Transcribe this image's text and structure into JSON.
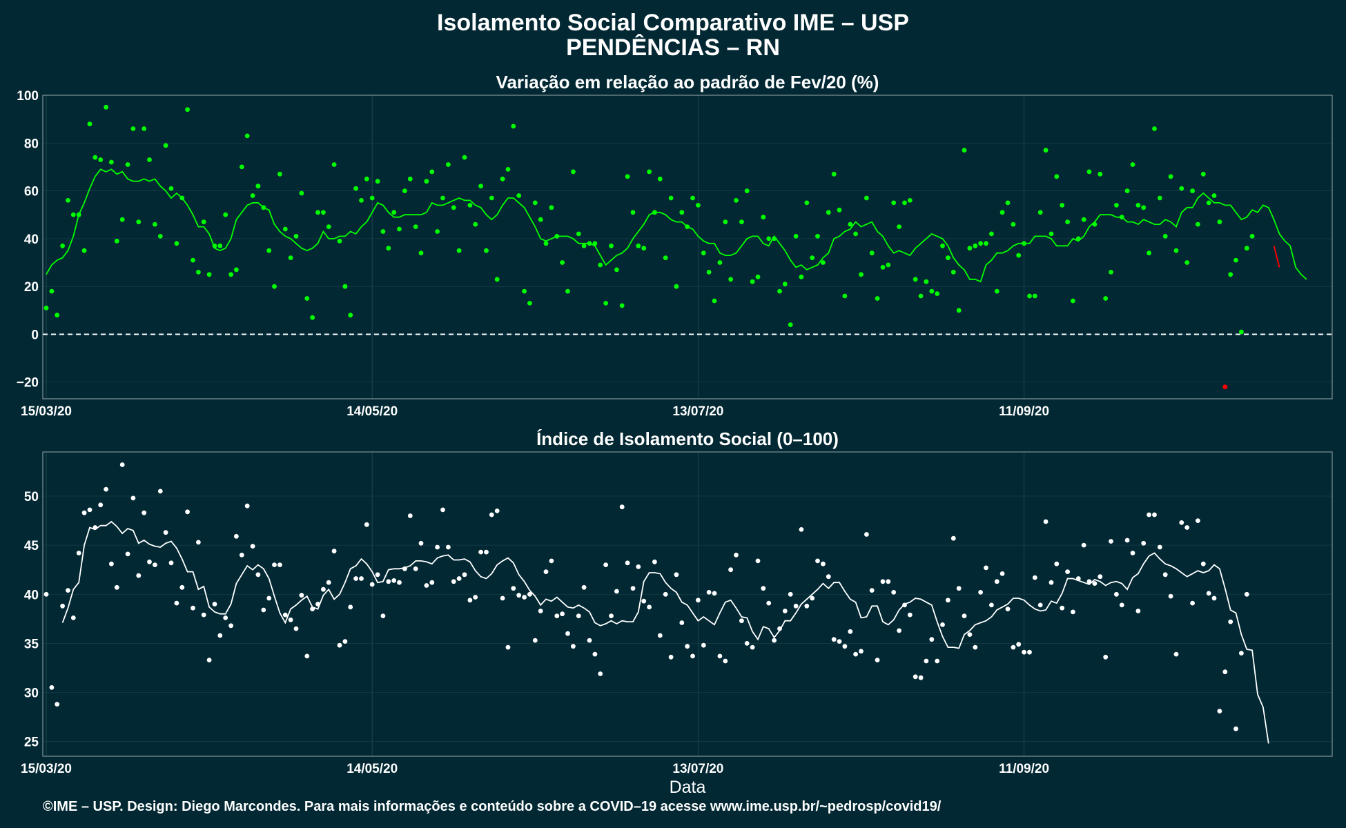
{
  "header": {
    "title": "Isolamento Social Comparativo IME – USP",
    "subtitle": "PENDÊNCIAS – RN"
  },
  "footer": {
    "text": "©IME – USP. Design: Diego Marcondes. Para mais informações e conteúdo sobre a COVID–19 acesse www.ime.usp.br/~pedrosp/covid19/"
  },
  "colors": {
    "background": "#022833",
    "top_series": "#00ff00",
    "top_highlight": "#ff0000",
    "bottom_series": "#ffffff"
  },
  "chart_data": [
    {
      "type": "scatter",
      "title": "Variação em relação ao padrão de Fev/20 (%)",
      "xlabel": "",
      "ylabel": "",
      "x_start": "15/03/20",
      "x_ticks": [
        {
          "day": 0,
          "label": "15/03/20"
        },
        {
          "day": 60,
          "label": "14/05/20"
        },
        {
          "day": 120,
          "label": "13/07/20"
        },
        {
          "day": 180,
          "label": "11/09/20"
        }
      ],
      "y_ticks": [
        -20,
        0,
        20,
        40,
        60,
        80,
        100
      ],
      "ylim": [
        -27,
        100
      ],
      "reference_line": 0,
      "grid": true,
      "series": [
        {
          "kind": "points",
          "values": [
            11,
            18,
            8,
            37,
            56,
            50,
            50,
            35,
            88,
            74,
            73,
            95,
            72,
            39,
            48,
            71,
            86,
            47,
            86,
            73,
            46,
            41,
            79,
            61,
            38,
            57,
            94,
            31,
            26,
            47,
            25,
            37,
            37,
            50,
            25,
            27,
            70,
            83,
            58,
            62,
            53,
            35,
            20,
            67,
            44,
            32,
            41,
            59,
            15,
            7,
            51,
            51,
            45,
            71,
            39,
            20,
            8,
            61,
            56,
            65,
            57,
            64,
            43,
            36,
            51,
            44,
            60,
            65,
            45,
            34,
            64,
            68,
            43,
            57,
            71,
            53,
            35,
            74,
            54,
            46,
            62,
            35,
            57,
            23,
            65,
            69,
            87,
            58,
            18,
            13,
            55,
            48,
            38,
            53,
            41,
            30,
            18,
            68,
            42,
            37,
            38,
            38,
            29,
            13,
            37,
            27,
            12,
            66,
            51,
            37,
            36,
            68,
            51,
            65,
            32,
            57,
            20,
            51,
            45,
            57,
            54,
            34,
            26,
            14,
            30,
            47,
            23,
            56,
            47,
            60,
            22,
            24,
            49,
            40,
            40,
            18,
            21,
            4,
            41,
            24,
            55,
            32,
            41,
            30,
            51,
            67,
            52,
            16,
            46,
            42,
            25,
            57,
            34,
            15,
            28,
            29,
            55,
            45,
            55,
            56,
            23,
            16,
            22,
            18,
            17,
            37,
            32,
            26,
            10,
            77,
            36,
            37,
            38,
            38,
            42,
            18,
            51,
            55,
            46,
            33,
            38,
            16,
            16,
            51,
            77,
            42,
            66,
            54,
            47,
            14,
            40,
            48,
            68,
            46,
            67,
            15,
            26,
            54,
            49,
            60,
            71,
            54,
            53,
            34,
            86,
            57,
            41,
            66,
            35,
            61,
            30,
            60,
            46,
            67,
            55,
            58,
            47,
            -22,
            25,
            31,
            1,
            36,
            41
          ]
        },
        {
          "kind": "line",
          "values": [
            25,
            29,
            31,
            32,
            35,
            41,
            50,
            55,
            61,
            66,
            69,
            68,
            69,
            67,
            68,
            65,
            64,
            64,
            65,
            64,
            65,
            62,
            60,
            57,
            59,
            57,
            54,
            50,
            45,
            45,
            42,
            36,
            35,
            36,
            40,
            48,
            51,
            54,
            55,
            55,
            53,
            52,
            46,
            43,
            41,
            40,
            38,
            36,
            35,
            36,
            38,
            43,
            40,
            40,
            41,
            41,
            43,
            42,
            45,
            47,
            51,
            55,
            54,
            51,
            49,
            49,
            50,
            50,
            50,
            50,
            51,
            55,
            54,
            54,
            55,
            56,
            57,
            56,
            56,
            54,
            53,
            50,
            48,
            50,
            54,
            57,
            57,
            55,
            53,
            49,
            45,
            40,
            39,
            40,
            41,
            41,
            41,
            40,
            38,
            38,
            38,
            37,
            33,
            29,
            31,
            33,
            34,
            36,
            40,
            43,
            46,
            50,
            51,
            51,
            50,
            48,
            47,
            47,
            45,
            44,
            41,
            39,
            38,
            38,
            34,
            33,
            33,
            34,
            37,
            40,
            41,
            41,
            38,
            37,
            41,
            38,
            35,
            31,
            28,
            29,
            27,
            28,
            29,
            32,
            34,
            40,
            41,
            43,
            44,
            47,
            45,
            46,
            47,
            43,
            41,
            37,
            34,
            35,
            34,
            33,
            36,
            38,
            40,
            42,
            41,
            40,
            37,
            32,
            29,
            27,
            23,
            23,
            22,
            29,
            31,
            34,
            34,
            35,
            37,
            38,
            38,
            38,
            41,
            41,
            41,
            40,
            37,
            37,
            37,
            40,
            39,
            41,
            45,
            47,
            50,
            50,
            50,
            49,
            49,
            47,
            47,
            46,
            48,
            47,
            46,
            46,
            48,
            47,
            45,
            51,
            53,
            53,
            57,
            59,
            57,
            55,
            55,
            54,
            54,
            51,
            48,
            49,
            52,
            51,
            54,
            53,
            48,
            42,
            39,
            37,
            28,
            25,
            23
          ]
        },
        {
          "kind": "highlight",
          "from_day": 226,
          "values": [
            37,
            28
          ]
        }
      ]
    },
    {
      "type": "scatter",
      "title": "Índice de Isolamento Social (0–100)",
      "xlabel": "Data",
      "ylabel": "",
      "x_start": "15/03/20",
      "x_ticks": [
        {
          "day": 0,
          "label": "15/03/20"
        },
        {
          "day": 60,
          "label": "14/05/20"
        },
        {
          "day": 120,
          "label": "13/07/20"
        },
        {
          "day": 180,
          "label": "11/09/20"
        }
      ],
      "y_ticks": [
        25,
        30,
        35,
        40,
        45,
        50
      ],
      "ylim": [
        23.5,
        54.5
      ],
      "grid": true,
      "series": [
        {
          "kind": "points",
          "values": [
            40,
            30.5,
            28.8,
            38.8,
            40.4,
            37.6,
            44.2,
            48.3,
            48.6,
            46.8,
            49.1,
            50.7,
            43.1,
            40.7,
            53.2,
            44.1,
            49.8,
            41.9,
            48.3,
            43.3,
            43,
            50.5,
            46.3,
            43.2,
            39.1,
            40.7,
            48.4,
            38.6,
            45.3,
            37.9,
            33.3,
            39,
            35.8,
            37.6,
            36.8,
            45.9,
            44,
            49,
            44.9,
            42,
            38.4,
            39.6,
            43,
            43,
            37.9,
            37.4,
            36.5,
            39.9,
            33.7,
            38.5,
            39,
            40.5,
            41.2,
            44.4,
            34.8,
            35.2,
            38.7,
            41.6,
            41.6,
            47.1,
            41,
            42,
            37.8,
            41.3,
            41.4,
            41.2,
            42.6,
            48,
            42.6,
            45.2,
            40.9,
            41.2,
            44.8,
            48.6,
            44.8,
            41.3,
            41.6,
            42,
            39.4,
            39.7,
            44.3,
            44.3,
            48.1,
            48.5,
            39.6,
            34.6,
            40.6,
            39.9,
            39.7,
            40,
            35.3,
            38.3,
            42.3,
            43.4,
            37.8,
            38,
            36,
            34.7,
            37.8,
            40.7,
            35.3,
            33.9,
            31.9,
            43,
            37.8,
            40.3,
            48.9,
            43.2,
            40.6,
            42.8,
            39.3,
            38.7,
            43.3,
            35.8,
            40,
            33.6,
            42,
            37.1,
            34.7,
            33.7,
            39.4,
            34.8,
            40.2,
            40.1,
            33.7,
            33.2,
            42.5,
            44,
            37.3,
            35,
            34.6,
            43.4,
            40.6,
            39.1,
            35.3,
            36.5,
            38.3,
            40,
            38.8,
            46.6,
            38.8,
            39.6,
            43.4,
            43.1,
            41.8,
            35.4,
            35.2,
            34.7,
            36.2,
            33.9,
            34.2,
            46.1,
            40.4,
            33.3,
            41.3,
            41.3,
            40.2,
            36.3,
            38.9,
            37.9,
            31.6,
            31.5,
            33.2,
            35.4,
            33.2,
            36.9,
            39.4,
            45.7,
            40.6,
            37.8,
            35.9,
            34.6,
            40.2,
            42.7,
            38.9,
            41.3,
            42.1,
            38.5,
            34.6,
            34.9,
            34.1,
            34.1,
            41.7,
            38.9,
            47.4,
            41.2,
            43.1,
            38.6,
            42.3,
            38.2,
            41.6,
            45,
            41.3,
            41.1,
            41.8,
            33.6,
            45.4,
            40,
            38.9,
            45.5,
            44.2,
            38.3,
            45.2,
            48.1,
            48.1,
            44.8,
            42,
            39.8,
            33.9,
            47.3,
            46.8,
            39.1,
            47.5,
            43.1,
            40.1,
            39.6,
            28.1,
            32.1,
            37.2,
            26.3,
            34,
            40
          ]
        },
        {
          "kind": "line",
          "from_day": 3,
          "values": [
            37.1,
            38.6,
            40.5,
            41.2,
            45,
            46.8,
            46.6,
            47,
            47,
            47.4,
            46.9,
            46.2,
            46.7,
            46.5,
            45.2,
            45.5,
            45.1,
            44.9,
            44.8,
            45.2,
            45.4,
            44.7,
            43.6,
            42.3,
            42.3,
            40.5,
            40.8,
            38.7,
            38.2,
            38,
            38,
            39,
            41.1,
            42,
            42.9,
            42.5,
            43,
            42.6,
            41.6,
            39.8,
            38.1,
            37.1,
            38.5,
            38.9,
            39.4,
            39.8,
            38.7,
            38.5,
            39.9,
            40.5,
            39.5,
            40,
            41.2,
            42.6,
            42.9,
            43.6,
            43.1,
            42.3,
            41.2,
            41.3,
            42.5,
            42.6,
            42.6,
            42.7,
            42.9,
            43.4,
            43.4,
            43.3,
            43.1,
            43.7,
            43.9,
            44,
            43.5,
            43.5,
            43.6,
            43.3,
            42.4,
            41.8,
            41.6,
            42.1,
            43,
            43.4,
            43.7,
            43.2,
            42,
            41.3,
            40.4,
            39.8,
            38.9,
            39.5,
            39.3,
            39.7,
            39.2,
            38.7,
            38.6,
            38.9,
            38.6,
            38.2,
            37.1,
            36.8,
            37,
            37.3,
            37,
            37.3,
            37.2,
            37.2,
            38.2,
            41.3,
            42.2,
            42.2,
            42.1,
            41.2,
            40.6,
            40.2,
            39.2,
            38.9,
            38.1,
            37.3,
            37.7,
            37.3,
            36.9,
            38.1,
            39.2,
            39.4,
            38.6,
            37.7,
            37.6,
            36.2,
            35.4,
            36.7,
            36.5,
            35.6,
            36.3,
            37.3,
            37.3,
            38.1,
            39,
            39.5,
            40,
            40.5,
            41.1,
            40.6,
            41.2,
            41.2,
            40.3,
            39.5,
            39.2,
            37.6,
            37.7,
            38.8,
            38.8,
            37.2,
            36.9,
            37.4,
            38.4,
            39,
            39.2,
            39.6,
            39.5,
            39.2,
            38.9,
            37.2,
            35.7,
            34.6,
            34.6,
            34.5,
            35.9,
            36.3,
            36.9,
            37.1,
            37.3,
            37.7,
            38.4,
            38.7,
            39,
            39.6,
            39.6,
            39.4,
            38.9,
            38.5,
            38.3,
            38.4,
            39.3,
            39.1,
            40.1,
            41.6,
            41.6,
            41.4,
            41.2,
            41,
            41.5,
            41.3,
            40.9,
            41.2,
            41.3,
            41.1,
            40.5,
            41.7,
            42.1,
            43.1,
            43.9,
            44.2,
            43.6,
            43.1,
            42.9,
            42.6,
            42.2,
            41.8,
            42.1,
            42.4,
            42.2,
            42.4,
            43,
            42.6,
            40.6,
            38.4,
            38.1,
            35.9,
            34.4,
            34.3,
            29.8,
            28.5,
            24.8
          ]
        }
      ]
    }
  ]
}
